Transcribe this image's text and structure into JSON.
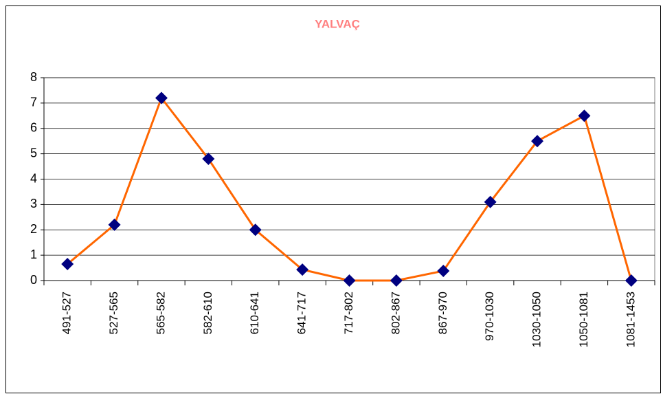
{
  "chart_data": {
    "type": "line",
    "title": "YALVAÇ",
    "categories": [
      "491-527",
      "527-565",
      "565-582",
      "582-610",
      "610-641",
      "641-717",
      "717-802",
      "802-867",
      "867-970",
      "970-1030",
      "1030-1050",
      "1050-1081",
      "1081-1453"
    ],
    "series": [
      {
        "name": "YALVAÇ",
        "color": "#ff6600",
        "marker_color": "#000080",
        "values": [
          0.65,
          2.2,
          7.2,
          4.8,
          2.0,
          0.43,
          0,
          0,
          0.38,
          3.1,
          5.5,
          6.5,
          0
        ]
      }
    ],
    "ylim": [
      0,
      8
    ],
    "yticks": [
      0,
      1,
      2,
      3,
      4,
      5,
      6,
      7,
      8
    ],
    "grid": true
  }
}
